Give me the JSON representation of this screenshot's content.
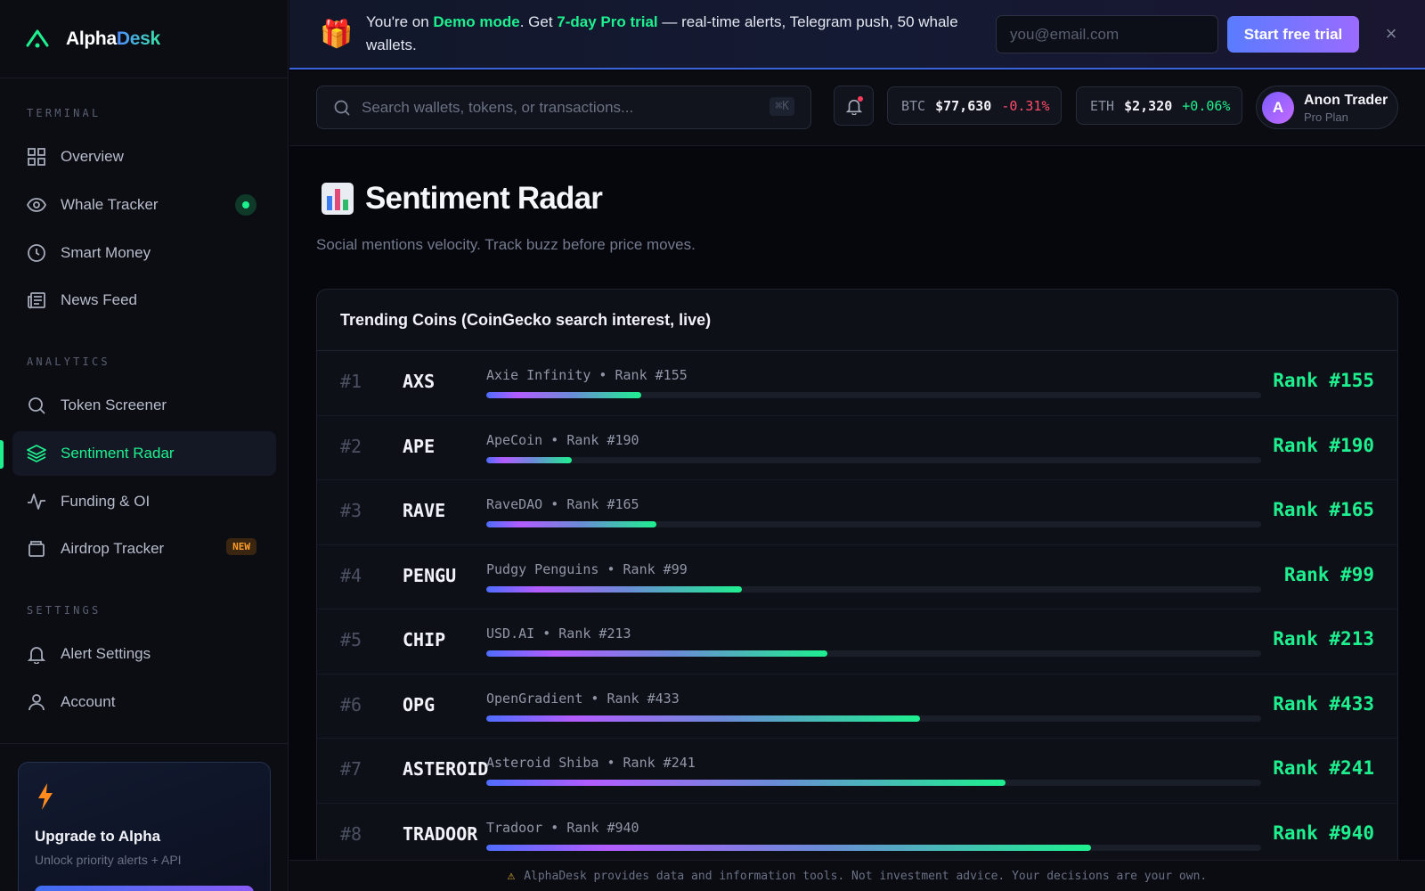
{
  "brand": {
    "name_part1": "Alpha",
    "name_part2": "Desk"
  },
  "sidebar": {
    "sections": [
      {
        "label": "TERMINAL"
      },
      {
        "label": "ANALYTICS"
      },
      {
        "label": "SETTINGS"
      }
    ],
    "items": [
      {
        "label": "Overview",
        "icon": "grid-icon"
      },
      {
        "label": "Whale Tracker",
        "icon": "eye-icon",
        "status": "live"
      },
      {
        "label": "Smart Money",
        "icon": "clock-icon"
      },
      {
        "label": "News Feed",
        "icon": "newspaper-icon"
      },
      {
        "label": "Token Screener",
        "icon": "search-icon"
      },
      {
        "label": "Sentiment Radar",
        "icon": "layers-icon",
        "active": true
      },
      {
        "label": "Funding & OI",
        "icon": "pulse-icon"
      },
      {
        "label": "Airdrop Tracker",
        "icon": "wallet-icon",
        "badge": "NEW"
      },
      {
        "label": "Alert Settings",
        "icon": "bell-icon"
      },
      {
        "label": "Account",
        "icon": "user-icon"
      }
    ],
    "upgrade": {
      "title": "Upgrade to Alpha",
      "subtitle": "Unlock priority alerts + API"
    }
  },
  "promo": {
    "t1": "You're on ",
    "t2": "Demo mode",
    "t3": ". Get ",
    "t4": "7-day Pro trial",
    "t5": " — real-time alerts, Telegram push, 50 whale wallets.",
    "email_placeholder": "you@email.com",
    "cta": "Start free trial",
    "close": "×"
  },
  "topbar": {
    "search_placeholder": "Search wallets, tokens, or transactions...",
    "shortcut": "⌘K",
    "tickers": [
      {
        "symbol": "BTC",
        "price": "$77,630",
        "change": "-0.31%"
      },
      {
        "symbol": "ETH",
        "price": "$2,320",
        "change": "+0.06%"
      }
    ],
    "user": {
      "initial": "A",
      "name": "Anon Trader",
      "plan": "Pro Plan"
    }
  },
  "page": {
    "title": "Sentiment Radar",
    "subtitle": "Social mentions velocity. Track buzz before price moves."
  },
  "trending": {
    "title": "Trending Coins (CoinGecko search interest, live)",
    "rows": [
      {
        "idx": "#1",
        "symbol": "AXS",
        "name": "Axie Infinity",
        "meta_rank": "Rank #155",
        "rank": "Rank #155",
        "score": 0.2
      },
      {
        "idx": "#2",
        "symbol": "APE",
        "name": "ApeCoin",
        "meta_rank": "Rank #190",
        "rank": "Rank #190",
        "score": 0.11
      },
      {
        "idx": "#3",
        "symbol": "RAVE",
        "name": "RaveDAO",
        "meta_rank": "Rank #165",
        "rank": "Rank #165",
        "score": 0.22
      },
      {
        "idx": "#4",
        "symbol": "PENGU",
        "name": "Pudgy Penguins",
        "meta_rank": "Rank #99",
        "rank": "Rank #99",
        "score": 0.33
      },
      {
        "idx": "#5",
        "symbol": "CHIP",
        "name": "USD.AI",
        "meta_rank": "Rank #213",
        "rank": "Rank #213",
        "score": 0.44
      },
      {
        "idx": "#6",
        "symbol": "OPG",
        "name": "OpenGradient",
        "meta_rank": "Rank #433",
        "rank": "Rank #433",
        "score": 0.56
      },
      {
        "idx": "#7",
        "symbol": "ASTEROID",
        "name": "Asteroid Shiba",
        "meta_rank": "Rank #241",
        "rank": "Rank #241",
        "score": 0.67
      },
      {
        "idx": "#8",
        "symbol": "TRADOOR",
        "name": "Tradoor",
        "meta_rank": "Rank #940",
        "rank": "Rank #940",
        "score": 0.78
      }
    ]
  },
  "footer": {
    "text": "AlphaDesk provides data and information tools. Not investment advice. Your decisions are your own."
  }
}
